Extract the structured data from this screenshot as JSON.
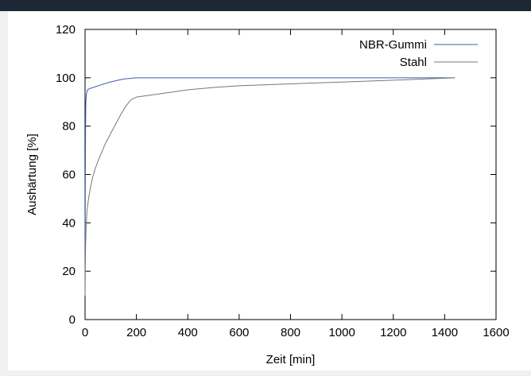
{
  "colors": {
    "window_bar": "#1c2833",
    "page_background": "#ffffff",
    "axis": "#000000",
    "series_nbr": "#3b5fa8",
    "series_stahl": "#777777"
  },
  "chart_data": {
    "type": "line",
    "title": "",
    "xlabel": "Zeit [min]",
    "ylabel": "Aushärtung [%]",
    "xlim": [
      0,
      1600
    ],
    "ylim": [
      0,
      120
    ],
    "xticks": [
      "0",
      "200",
      "400",
      "600",
      "800",
      "1000",
      "1200",
      "1400",
      "1600"
    ],
    "yticks": [
      "0",
      "20",
      "40",
      "60",
      "80",
      "100",
      "120"
    ],
    "grid": false,
    "legend": "top-right",
    "series": [
      {
        "name": "NBR-Gummi",
        "color": "#3b5fa8",
        "x": [
          0,
          1,
          2,
          3,
          5,
          8,
          12,
          20,
          40,
          60,
          100,
          150,
          200,
          400,
          800,
          1200,
          1440
        ],
        "y": [
          10,
          55,
          80,
          90,
          93,
          94.5,
          95.2,
          95.6,
          96.3,
          97,
          98.3,
          99.5,
          100,
          100,
          100,
          100,
          100
        ]
      },
      {
        "name": "Stahl",
        "color": "#777777",
        "x": [
          0,
          1,
          2,
          4,
          7,
          10,
          15,
          20,
          30,
          40,
          50,
          60,
          80,
          100,
          120,
          140,
          160,
          180,
          200,
          300,
          400,
          500,
          600,
          800,
          1000,
          1200,
          1440
        ],
        "y": [
          10,
          22,
          30,
          38,
          44,
          47,
          51,
          54,
          59,
          62.5,
          65.5,
          68,
          73,
          77,
          81,
          85,
          88.5,
          91,
          92,
          93.5,
          95,
          96,
          96.7,
          97.5,
          98.2,
          99,
          100
        ]
      }
    ]
  }
}
